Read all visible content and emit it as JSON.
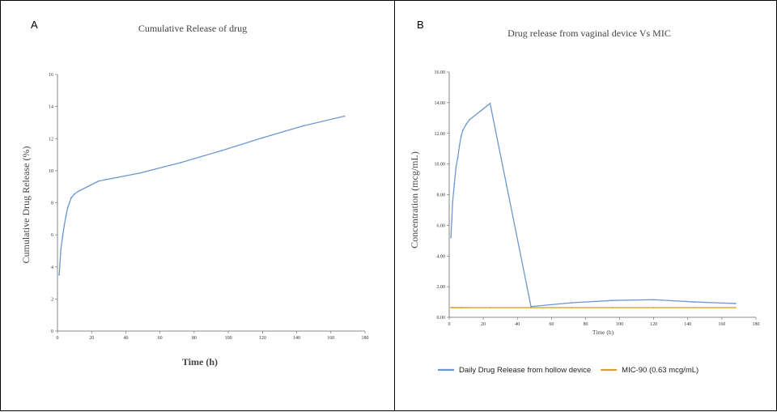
{
  "panel_labels": {
    "a": "A",
    "b": "B"
  },
  "colors": {
    "series_blue": "#6c97d1",
    "series_gold": "#d9a520",
    "axis": "#666666"
  },
  "chart_data": [
    {
      "type": "line",
      "title": "Cumulative Release of drug",
      "xlabel": "Time (h)",
      "ylabel": "Cumulative Drug Release (%)",
      "xlim": [
        0,
        180
      ],
      "ylim": [
        0,
        16
      ],
      "xticks": [
        0,
        20,
        40,
        60,
        80,
        100,
        120,
        140,
        160,
        180
      ],
      "yticks": [
        0,
        2,
        4,
        6,
        8,
        10,
        12,
        14,
        16
      ],
      "xtick_labels": [
        "0",
        "20",
        "40",
        "60",
        "80",
        "100",
        "120",
        "140",
        "160",
        "180"
      ],
      "ytick_labels": [
        "0",
        "2",
        "4",
        "6",
        "8",
        "10",
        "12",
        "14",
        "16"
      ],
      "grid": false,
      "legend": "none",
      "series": [
        {
          "x": [
            1,
            2,
            3,
            4,
            5,
            6,
            7,
            8,
            10,
            12,
            24,
            48,
            72,
            96,
            120,
            144,
            168
          ],
          "y": [
            3.5,
            5.1,
            5.9,
            6.6,
            7.2,
            7.7,
            8.0,
            8.3,
            8.55,
            8.7,
            9.35,
            9.85,
            10.5,
            11.25,
            12.05,
            12.8,
            13.4
          ]
        }
      ]
    },
    {
      "type": "line",
      "title": "Drug release from vaginal device Vs MIC",
      "xlabel": "Time (h)",
      "ylabel": "Concentration (mcg/mL)",
      "xlim": [
        0,
        180
      ],
      "ylim": [
        0,
        16
      ],
      "xticks": [
        0,
        20,
        40,
        60,
        80,
        100,
        120,
        140,
        160,
        180
      ],
      "yticks": [
        0,
        2,
        4,
        6,
        8,
        10,
        12,
        14,
        16
      ],
      "xtick_labels": [
        "0",
        "20",
        "40",
        "60",
        "80",
        "100",
        "120",
        "140",
        "160",
        "180"
      ],
      "ytick_labels": [
        "0.00",
        "2.00",
        "4.00",
        "6.00",
        "8.00",
        "10.00",
        "12.00",
        "14.00",
        "16.00"
      ],
      "grid": false,
      "legend": "bottom",
      "series": [
        {
          "name": "Daily Drug Release from hollow device",
          "x": [
            1,
            2,
            3,
            4,
            5,
            6,
            7,
            8,
            10,
            12,
            24,
            48,
            72,
            96,
            120,
            144,
            168
          ],
          "y": [
            5.2,
            7.5,
            8.7,
            9.8,
            10.4,
            11.2,
            11.8,
            12.2,
            12.6,
            12.9,
            13.95,
            0.7,
            0.95,
            1.1,
            1.15,
            1.0,
            0.9
          ]
        },
        {
          "name": "MIC-90 (0.63 mcg/mL)",
          "x": [
            1,
            2,
            3,
            4,
            5,
            6,
            7,
            8,
            10,
            12,
            24,
            48,
            72,
            96,
            120,
            144,
            168
          ],
          "y": [
            0.63,
            0.63,
            0.63,
            0.63,
            0.63,
            0.63,
            0.63,
            0.63,
            0.63,
            0.63,
            0.63,
            0.63,
            0.63,
            0.63,
            0.63,
            0.63,
            0.63
          ]
        }
      ]
    }
  ]
}
